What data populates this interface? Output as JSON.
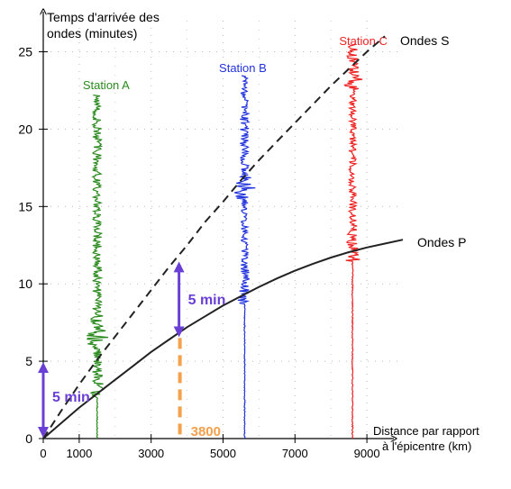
{
  "chart_data": {
    "type": "line",
    "ylabel": "Temps d'arrivée des ondes (minutes)",
    "ylabel_lines": [
      "Temps d'arrivée des",
      "ondes (minutes)"
    ],
    "xlabel": "Distance par rapport à l'épicentre (km)",
    "xlabel_lines": [
      "Distance par rapport",
      "à l'épicentre (km)"
    ],
    "xlim": [
      0,
      9500
    ],
    "ylim": [
      0,
      26
    ],
    "x_ticks": [
      0,
      1000,
      3000,
      5000,
      7000,
      9000
    ],
    "x_tick_labels": [
      "0",
      "1000",
      "3000",
      "5000",
      "7000",
      "9000"
    ],
    "y_ticks": [
      0,
      5,
      10,
      15,
      20,
      25
    ],
    "y_tick_labels": [
      "0",
      "5",
      "10",
      "15",
      "20",
      "25"
    ],
    "grid": "dotted",
    "series": [
      {
        "name": "Ondes S",
        "style": "dashed",
        "color": "#222222",
        "x": [
          0,
          500,
          1000,
          1500,
          2000,
          2500,
          3000,
          3500,
          4000,
          4500,
          5000,
          5500,
          6000,
          6500,
          7000,
          7500,
          8000,
          8500,
          9000,
          9500
        ],
        "y": [
          0,
          1.8,
          3.5,
          5.1,
          6.6,
          8.1,
          9.6,
          11.1,
          12.5,
          14.0,
          15.3,
          16.7,
          18.0,
          19.2,
          20.4,
          21.6,
          22.8,
          23.9,
          25.0,
          26.0
        ]
      },
      {
        "name": "Ondes P",
        "style": "solid",
        "color": "#222222",
        "x": [
          0,
          500,
          1000,
          1500,
          2000,
          2500,
          3000,
          3500,
          4000,
          4500,
          5000,
          5500,
          6000,
          6500,
          7000,
          7500,
          8000,
          8500,
          9000,
          9500,
          10000
        ],
        "y": [
          0,
          1.0,
          2.0,
          2.9,
          3.8,
          4.7,
          5.6,
          6.4,
          7.2,
          7.9,
          8.6,
          9.2,
          9.8,
          10.35,
          10.85,
          11.3,
          11.7,
          12.05,
          12.35,
          12.6,
          12.85
        ]
      }
    ],
    "seismograms": [
      {
        "name": "Station A",
        "color": "#2a8a1e",
        "distance_km": 1500,
        "y_top": 22.2,
        "burst_p": 3.0,
        "burst_s": 6.5
      },
      {
        "name": "Station B",
        "color": "#2233dd",
        "distance_km": 5600,
        "y_top": 23.5,
        "burst_p": 9.0,
        "burst_s": 16.0
      },
      {
        "name": "Station C",
        "color": "#ee2222",
        "distance_km": 8600,
        "y_top": 25.5,
        "burst_p": 11.8,
        "burst_s": 23.0
      }
    ],
    "annotations": [
      {
        "text": "5 min",
        "color": "#6a3fd6",
        "x_km": 0,
        "y_from": 0,
        "y_to": 5
      },
      {
        "text": "5 min",
        "color": "#6a3fd6",
        "x_km": 3800,
        "y_from": 6.5,
        "y_to": 11.5
      },
      {
        "text": "3800",
        "color": "#f5a04a",
        "x_km": 3800
      }
    ]
  }
}
